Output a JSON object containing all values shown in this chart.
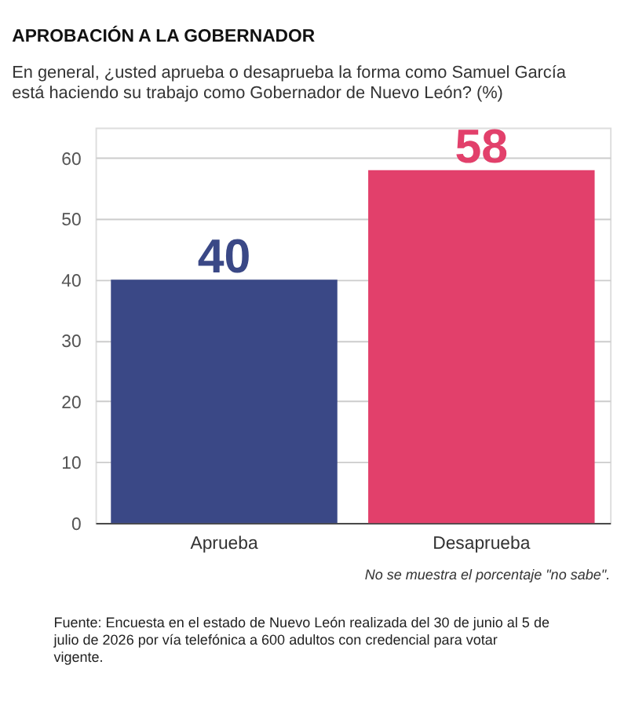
{
  "chart_data": {
    "type": "bar",
    "title": "APROBACIÓN A LA GOBERNADOR",
    "subtitle": "En general, ¿usted aprueba o desaprueba la forma como Samuel García está haciendo su trabajo como Gobernador de Nuevo León? (%)",
    "categories": [
      "Aprueba",
      "Desaprueba"
    ],
    "values": [
      40,
      58
    ],
    "colors": [
      "#3a4886",
      "#e2406b"
    ],
    "data_labels": true,
    "ylim": [
      0,
      65
    ],
    "yticks": [
      0,
      10,
      20,
      30,
      40,
      50,
      60
    ],
    "grid": "y",
    "annotations": [
      "No se muestra el porcentaje \"no sabe\".",
      "Fuente: Encuesta en el estado de Nuevo León realizada del 30 de junio al 5 de julio de 2026 por vía telefónica a 600 adultos con credencial para votar vigente."
    ]
  }
}
